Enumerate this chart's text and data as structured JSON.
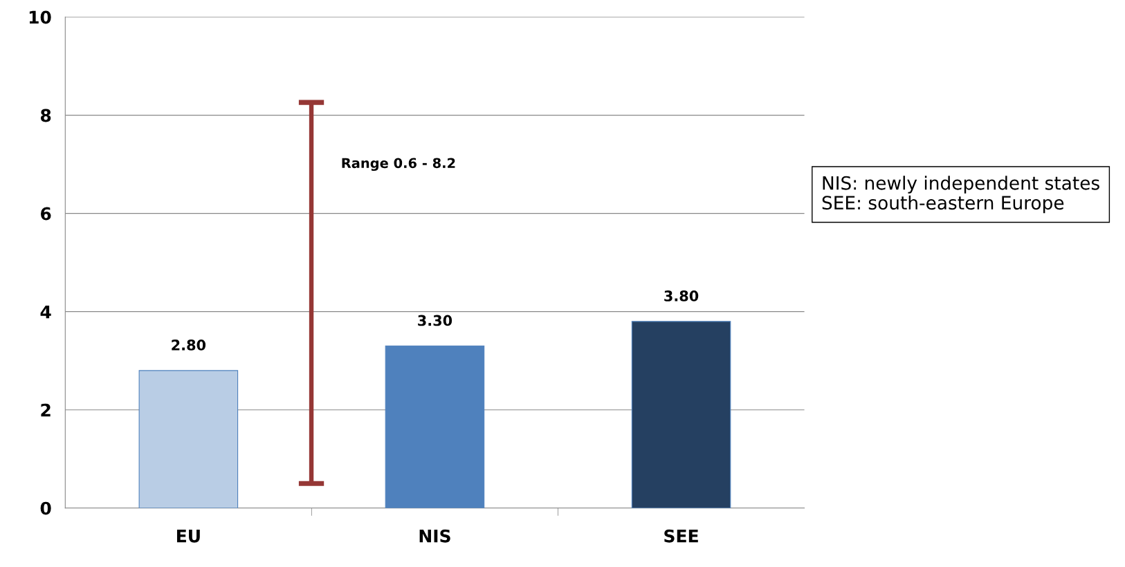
{
  "chart_data": {
    "type": "bar",
    "categories": [
      "EU",
      "NIS",
      "SEE"
    ],
    "values": [
      2.8,
      3.3,
      3.8
    ],
    "colors": [
      "#b9cde5",
      "#4f81bd",
      "#254061"
    ],
    "data_labels": true,
    "value_labels": [
      "2.80",
      "3.30",
      "3.80"
    ],
    "ylim": [
      0,
      10
    ],
    "yticks": [
      0,
      2,
      4,
      6,
      8,
      10
    ],
    "grid": "y",
    "legend": false,
    "annotations": [
      "Range 0.6 - 8.2",
      "NIS: newly independent states",
      "SEE: south-eastern Europe"
    ]
  }
}
